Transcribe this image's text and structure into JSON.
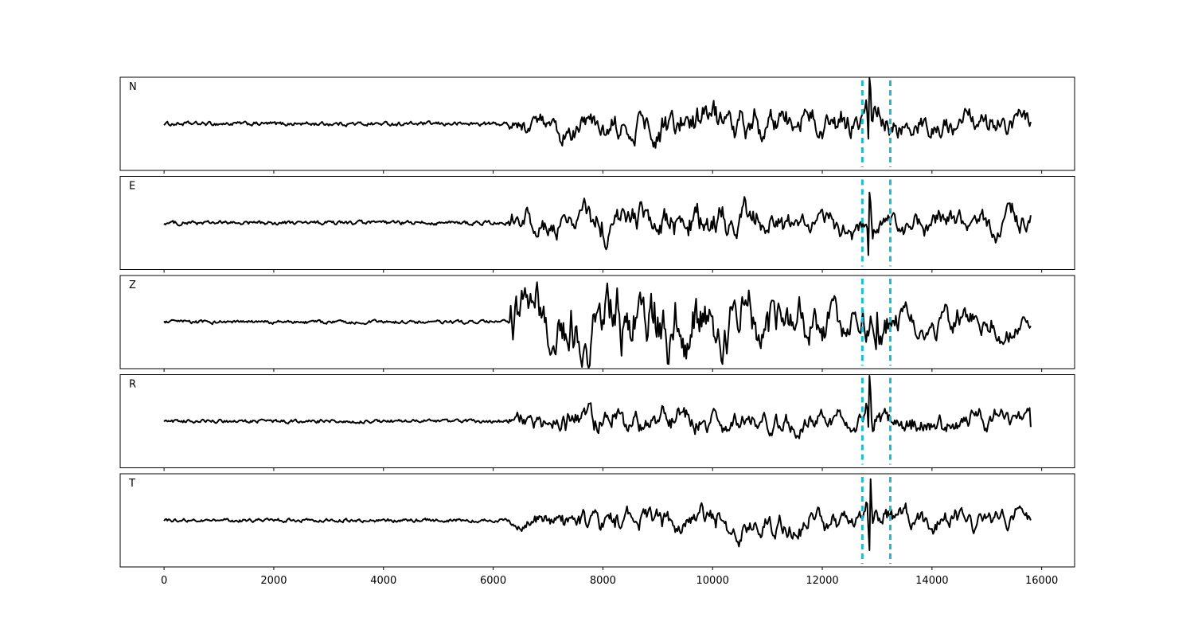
{
  "chart_data": {
    "type": "line",
    "title": "",
    "xlabel": "",
    "ylabel": "",
    "xlim": [
      -800,
      16600
    ],
    "x_ticks": [
      0,
      2000,
      4000,
      6000,
      8000,
      10000,
      12000,
      14000,
      16000
    ],
    "x_tick_labels": [
      "0",
      "2000",
      "4000",
      "6000",
      "8000",
      "10000",
      "12000",
      "14000",
      "16000"
    ],
    "grid": false,
    "legend": "none",
    "n_samples": 15800,
    "trace_color": "#000000",
    "pick_color": "#17becf",
    "vertical_markers": [
      12730,
      13240
    ],
    "series": [
      {
        "label": "N",
        "onset": 6300,
        "noise_amp": 0.07,
        "signal_amp": 0.5,
        "envelope": [
          [
            6300,
            0.35
          ],
          [
            7500,
            0.55
          ],
          [
            10300,
            0.75
          ],
          [
            12700,
            0.6
          ],
          [
            13300,
            0.55
          ],
          [
            15800,
            0.5
          ]
        ],
        "spike": {
          "center": 12860,
          "amp": 1.0
        },
        "y_range": [
          -1.2,
          1.2
        ],
        "end_value": 0.05
      },
      {
        "label": "E",
        "onset": 6300,
        "noise_amp": 0.07,
        "signal_amp": 0.5,
        "envelope": [
          [
            6300,
            0.4
          ],
          [
            8000,
            0.7
          ],
          [
            8300,
            0.75
          ],
          [
            11700,
            0.6
          ],
          [
            12700,
            0.45
          ],
          [
            15800,
            0.55
          ]
        ],
        "spike": {
          "center": 12860,
          "amp": 0.95
        },
        "y_range": [
          -1.2,
          1.2
        ],
        "end_value": 0.2
      },
      {
        "label": "Z",
        "onset": 6300,
        "noise_amp": 0.06,
        "signal_amp": 0.75,
        "envelope": [
          [
            6300,
            0.8
          ],
          [
            7500,
            0.95
          ],
          [
            8300,
            1.0
          ],
          [
            10800,
            0.85
          ],
          [
            12700,
            0.5
          ],
          [
            13100,
            0.6
          ],
          [
            15800,
            0.3
          ]
        ],
        "spike": {
          "center": 12990,
          "amp": 0.55
        },
        "y_range": [
          -1.2,
          1.2
        ],
        "end_value": -0.1
      },
      {
        "label": "R",
        "onset": 6300,
        "noise_amp": 0.06,
        "signal_amp": 0.45,
        "envelope": [
          [
            6300,
            0.4
          ],
          [
            8000,
            0.6
          ],
          [
            10000,
            0.5
          ],
          [
            12700,
            0.45
          ],
          [
            14600,
            0.55
          ],
          [
            15800,
            0.35
          ]
        ],
        "spike": {
          "center": 12860,
          "amp": 0.9
        },
        "y_range": [
          -1.2,
          1.2
        ],
        "end_value": -0.15
      },
      {
        "label": "T",
        "onset": 6300,
        "noise_amp": 0.06,
        "signal_amp": 0.45,
        "envelope": [
          [
            6300,
            0.35
          ],
          [
            8000,
            0.5
          ],
          [
            10200,
            0.6
          ],
          [
            12700,
            0.5
          ],
          [
            14600,
            0.5
          ],
          [
            15800,
            0.4
          ]
        ],
        "spike": {
          "center": 12870,
          "amp": 1.0
        },
        "y_range": [
          -1.2,
          1.2
        ],
        "end_value": 0.0
      }
    ]
  }
}
